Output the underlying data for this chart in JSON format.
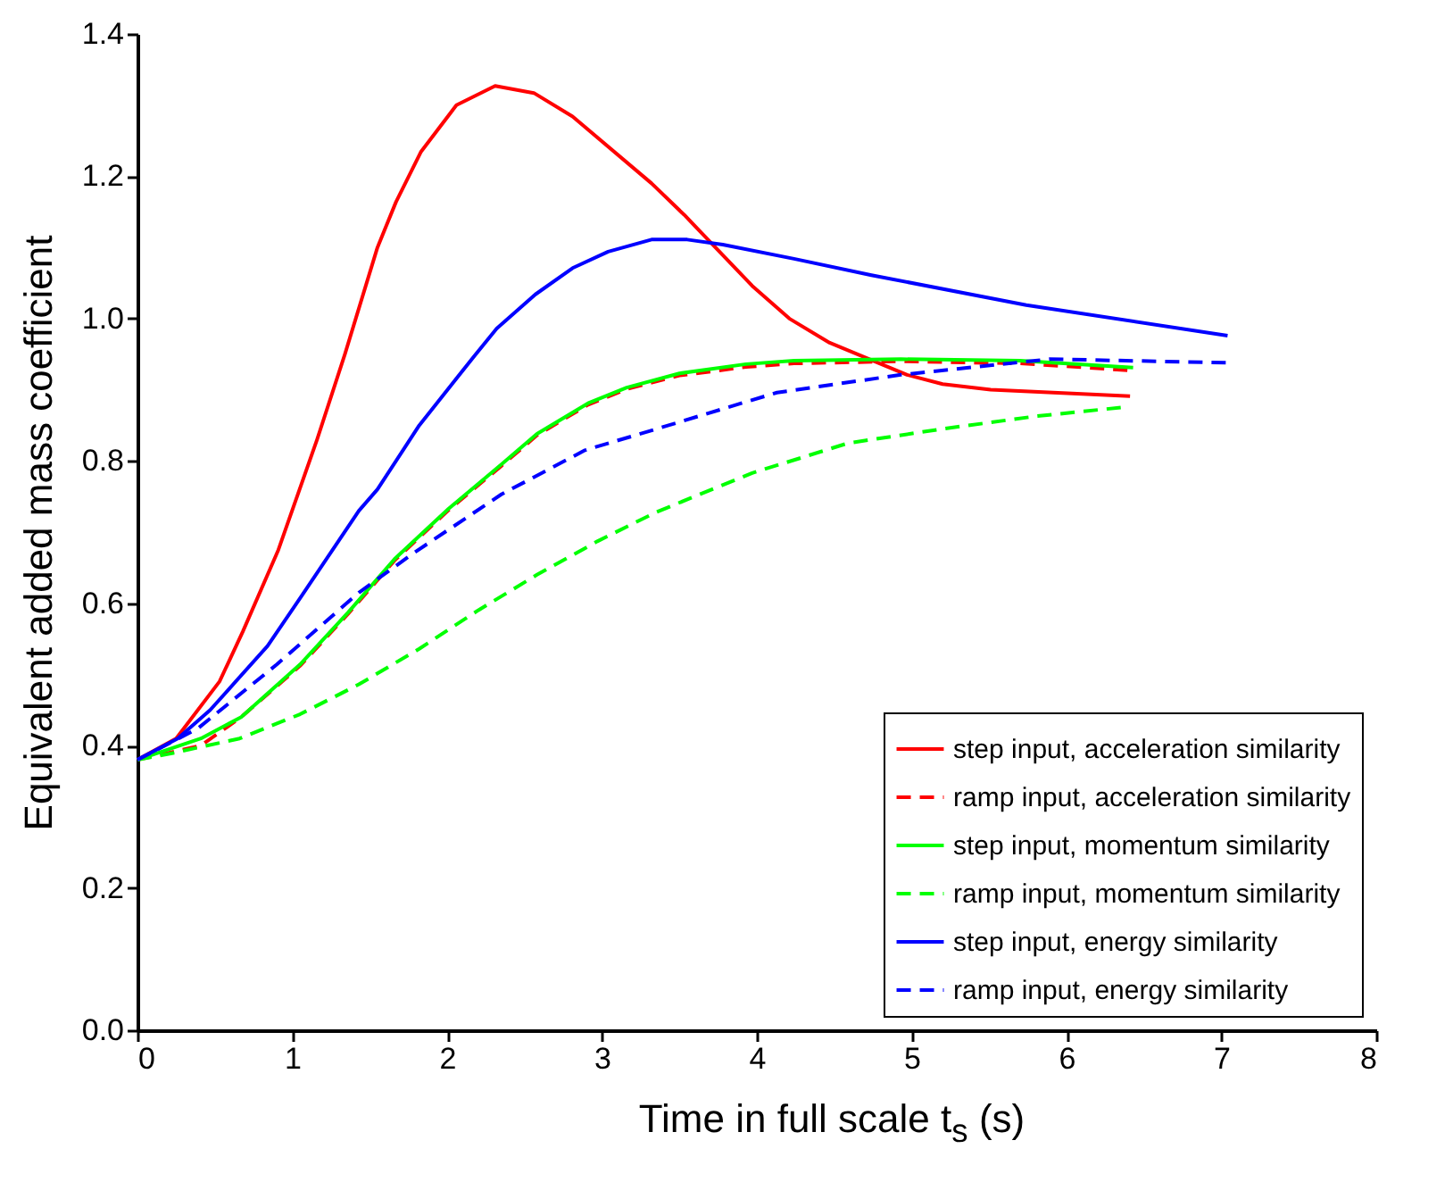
{
  "chart_data": {
    "type": "line",
    "xlabel": "Time in full scale t$_{s}$ (s)",
    "ylabel": "Equivalent added mass coefficient",
    "xlim": [
      0,
      8
    ],
    "ylim": [
      0,
      1.4
    ],
    "xticks": [
      0,
      1,
      2,
      3,
      4,
      5,
      6,
      7,
      8
    ],
    "yticks": [
      {
        "value": 0,
        "label": "0.0"
      },
      0.2,
      0.4,
      0.6,
      0.8,
      {
        "value": 1,
        "label": "1.0"
      },
      1.2,
      1.4
    ],
    "grid": false,
    "legend": "bottom right",
    "series": [
      {
        "name": "step input,  acceleration similarity",
        "color": "#ff0000",
        "line_style": "solid",
        "x": [
          0,
          0.25,
          0.53,
          0.68,
          0.91,
          1.16,
          1.34,
          1.55,
          1.67,
          1.83,
          2.06,
          2.31,
          2.56,
          2.81,
          3.32,
          3.53,
          3.97,
          4.21,
          4.47,
          4.97,
          5.2,
          5.51,
          6.41
        ],
        "values": [
          0.38,
          0.41,
          0.49,
          0.56,
          0.675,
          0.83,
          0.95,
          1.1,
          1.164,
          1.234,
          1.3,
          1.327,
          1.317,
          1.284,
          1.19,
          1.146,
          1.046,
          1.0,
          0.966,
          0.921,
          0.908,
          0.9,
          0.891
        ]
      },
      {
        "name": "ramp input, acceleration similarity",
        "color": "#ff0000",
        "line_style": "dashed",
        "x": [
          0,
          0.41,
          0.67,
          1.05,
          1.36,
          1.66,
          2.01,
          2.35,
          2.58,
          2.91,
          3.16,
          3.5,
          3.93,
          4.24,
          4.93,
          5.7,
          6.43
        ],
        "values": [
          0.38,
          0.4,
          0.44,
          0.512,
          0.585,
          0.66,
          0.731,
          0.793,
          0.836,
          0.879,
          0.901,
          0.92,
          0.932,
          0.937,
          0.94,
          0.937,
          0.927
        ]
      },
      {
        "name": "step input,  momentum similarity",
        "color": "#00ff00",
        "line_style": "solid",
        "x": [
          0,
          0.41,
          0.67,
          1.05,
          1.36,
          1.66,
          2.01,
          2.35,
          2.58,
          2.91,
          3.16,
          3.5,
          3.93,
          4.24,
          4.93,
          5.7,
          6.43
        ],
        "values": [
          0.38,
          0.41,
          0.44,
          0.514,
          0.587,
          0.662,
          0.733,
          0.795,
          0.838,
          0.881,
          0.903,
          0.923,
          0.936,
          0.941,
          0.943,
          0.941,
          0.931
        ]
      },
      {
        "name": "ramp input, momentum similarity",
        "color": "#00ff00",
        "line_style": "dashed",
        "x": [
          0,
          0.24,
          0.66,
          1.05,
          1.43,
          1.82,
          2.2,
          2.58,
          2.97,
          3.35,
          3.97,
          4.59,
          5.2,
          5.81,
          6.35
        ],
        "values": [
          0.38,
          0.39,
          0.41,
          0.444,
          0.486,
          0.536,
          0.59,
          0.64,
          0.687,
          0.728,
          0.783,
          0.825,
          0.845,
          0.863,
          0.875
        ]
      },
      {
        "name": "step input,  energy similarity",
        "color": "#0000ff",
        "line_style": "solid",
        "x": [
          0,
          0.26,
          0.47,
          0.84,
          1.05,
          1.43,
          1.55,
          1.82,
          2.17,
          2.32,
          2.57,
          2.81,
          3.04,
          3.32,
          3.55,
          3.78,
          4.24,
          4.74,
          5.74,
          7.04
        ],
        "values": [
          0.38,
          0.41,
          0.45,
          0.54,
          0.607,
          0.73,
          0.76,
          0.85,
          0.946,
          0.986,
          1.034,
          1.071,
          1.094,
          1.111,
          1.111,
          1.104,
          1.084,
          1.061,
          1.019,
          0.976
        ]
      },
      {
        "name": "ramp input, energy similarity",
        "color": "#0000ff",
        "line_style": "dashed",
        "x": [
          0,
          0.39,
          0.9,
          1.43,
          1.78,
          2.35,
          2.89,
          3.43,
          3.93,
          4.13,
          4.93,
          5.89,
          7.04
        ],
        "values": [
          0.38,
          0.424,
          0.514,
          0.615,
          0.67,
          0.753,
          0.815,
          0.85,
          0.883,
          0.896,
          0.921,
          0.943,
          0.938
        ]
      }
    ]
  }
}
